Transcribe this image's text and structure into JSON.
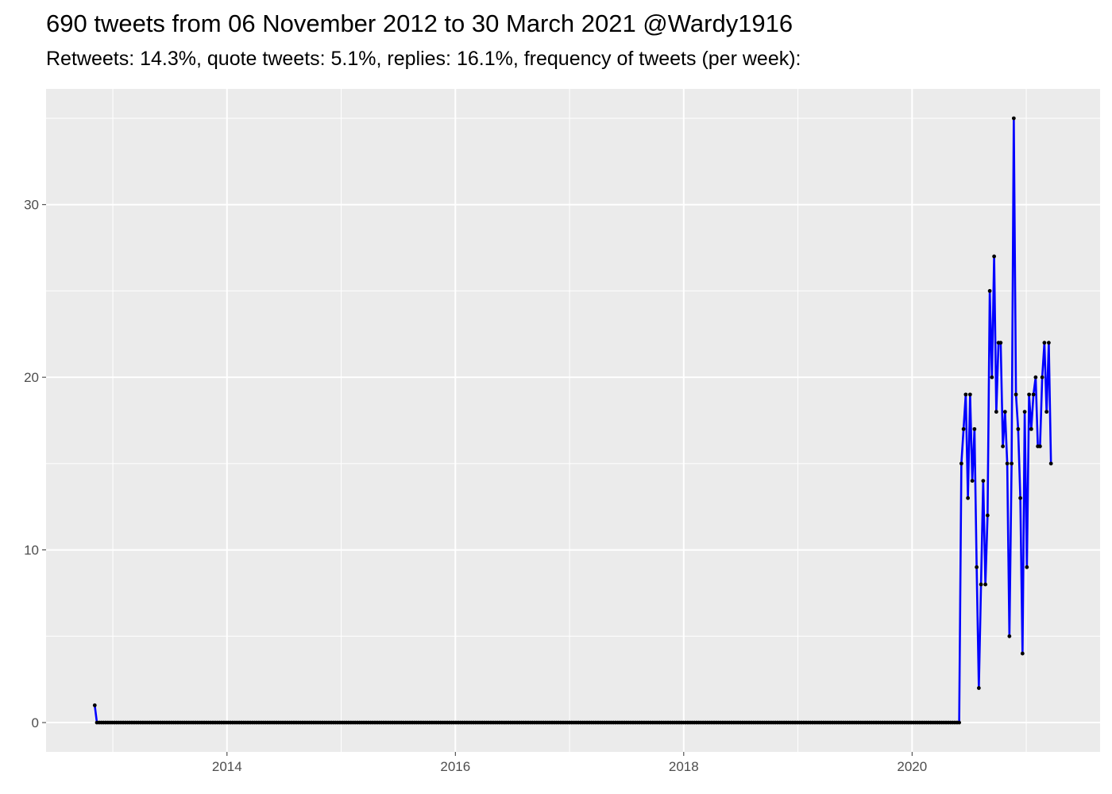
{
  "chart_data": {
    "type": "line",
    "title": "690 tweets from 06 November 2012 to 30 March 2021 @Wardy1916",
    "subtitle": "Retweets: 14.3%, quote tweets: 5.1%, replies: 16.1%, frequency of tweets (per week):",
    "xlabel": "",
    "ylabel": "",
    "x_type": "date",
    "xlim": [
      "2012-06-01",
      "2021-08-25"
    ],
    "ylim": [
      -1.7,
      36.7
    ],
    "x_ticks": [
      "2014",
      "2016",
      "2018",
      "2020"
    ],
    "y_ticks": [
      0,
      10,
      20,
      30
    ],
    "grid": true,
    "legend": "none",
    "colors": {
      "line": "#0000ff",
      "points": "#000000",
      "panel": "#ebebeb",
      "grid": "#ffffff"
    },
    "points": [
      {
        "x": "2012-11-04",
        "y": 1
      }
    ],
    "zero_weeks": {
      "from": "2012-11-11",
      "to": "2020-05-31",
      "y": 0
    },
    "points_after": [
      {
        "x": "2020-06-07",
        "y": 15
      },
      {
        "x": "2020-06-14",
        "y": 17
      },
      {
        "x": "2020-06-21",
        "y": 19
      },
      {
        "x": "2020-06-28",
        "y": 13
      },
      {
        "x": "2020-07-05",
        "y": 19
      },
      {
        "x": "2020-07-12",
        "y": 14
      },
      {
        "x": "2020-07-19",
        "y": 17
      },
      {
        "x": "2020-07-26",
        "y": 9
      },
      {
        "x": "2020-08-02",
        "y": 2
      },
      {
        "x": "2020-08-09",
        "y": 8
      },
      {
        "x": "2020-08-16",
        "y": 14
      },
      {
        "x": "2020-08-23",
        "y": 8
      },
      {
        "x": "2020-08-30",
        "y": 12
      },
      {
        "x": "2020-09-06",
        "y": 25
      },
      {
        "x": "2020-09-13",
        "y": 20
      },
      {
        "x": "2020-09-20",
        "y": 27
      },
      {
        "x": "2020-09-27",
        "y": 18
      },
      {
        "x": "2020-10-04",
        "y": 22
      },
      {
        "x": "2020-10-11",
        "y": 22
      },
      {
        "x": "2020-10-18",
        "y": 16
      },
      {
        "x": "2020-10-25",
        "y": 18
      },
      {
        "x": "2020-11-01",
        "y": 15
      },
      {
        "x": "2020-11-08",
        "y": 5
      },
      {
        "x": "2020-11-15",
        "y": 15
      },
      {
        "x": "2020-11-22",
        "y": 35
      },
      {
        "x": "2020-11-29",
        "y": 19
      },
      {
        "x": "2020-12-06",
        "y": 17
      },
      {
        "x": "2020-12-13",
        "y": 13
      },
      {
        "x": "2020-12-20",
        "y": 4
      },
      {
        "x": "2020-12-27",
        "y": 18
      },
      {
        "x": "2021-01-03",
        "y": 9
      },
      {
        "x": "2021-01-10",
        "y": 19
      },
      {
        "x": "2021-01-17",
        "y": 17
      },
      {
        "x": "2021-01-24",
        "y": 19
      },
      {
        "x": "2021-01-31",
        "y": 20
      },
      {
        "x": "2021-02-07",
        "y": 16
      },
      {
        "x": "2021-02-14",
        "y": 16
      },
      {
        "x": "2021-02-21",
        "y": 20
      },
      {
        "x": "2021-02-28",
        "y": 22
      },
      {
        "x": "2021-03-07",
        "y": 18
      },
      {
        "x": "2021-03-14",
        "y": 22
      },
      {
        "x": "2021-03-21",
        "y": 15
      }
    ]
  }
}
